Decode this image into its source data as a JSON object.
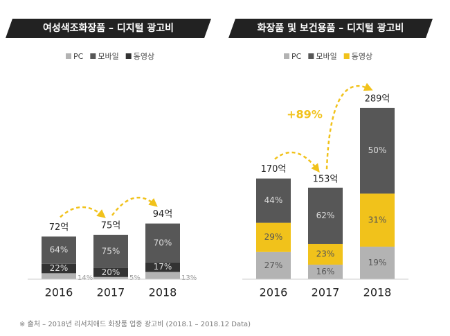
{
  "chart_data": [
    {
      "type": "bar",
      "stacked": true,
      "title": "여성색조화장품 – 디지털 광고비",
      "categories": [
        "2016",
        "2017",
        "2018"
      ],
      "series": [
        {
          "name": "PC",
          "color": "#b3b3b3",
          "values": [
            14,
            5,
            13
          ],
          "value_labels": [
            "14%",
            "5%",
            "13%"
          ]
        },
        {
          "name": "모바일",
          "color": "#575757",
          "values": [
            64,
            75,
            70
          ],
          "value_labels": [
            "64%",
            "75%",
            "70%"
          ]
        },
        {
          "name": "동영상",
          "color": "#333333",
          "values": [
            22,
            20,
            17
          ],
          "value_labels": [
            "22%",
            "20%",
            "17%"
          ]
        }
      ],
      "totals": {
        "values": [
          72,
          75,
          94
        ],
        "value_labels": [
          "72억",
          "75억",
          "94억"
        ]
      }
    },
    {
      "type": "bar",
      "stacked": true,
      "title": "화장품 및 보건용품 – 디지털 광고비",
      "categories": [
        "2016",
        "2017",
        "2018"
      ],
      "series": [
        {
          "name": "PC",
          "color": "#b3b3b3",
          "values": [
            27,
            16,
            19
          ],
          "value_labels": [
            "27%",
            "16%",
            "19%"
          ]
        },
        {
          "name": "모바일",
          "color": "#575757",
          "values": [
            44,
            62,
            50
          ],
          "value_labels": [
            "44%",
            "62%",
            "50%"
          ]
        },
        {
          "name": "동영상",
          "color": "#f1c21b",
          "values": [
            29,
            23,
            31
          ],
          "value_labels": [
            "29%",
            "23%",
            "31%"
          ]
        }
      ],
      "totals": {
        "values": [
          170,
          153,
          289
        ],
        "value_labels": [
          "170억",
          "153억",
          "289억"
        ]
      },
      "annotation": "+89%"
    }
  ],
  "footnote": "※ 출처 – 2018년 리서치애드 화장품 업종 광고비 (2018.1 – 2018.12 Data)"
}
